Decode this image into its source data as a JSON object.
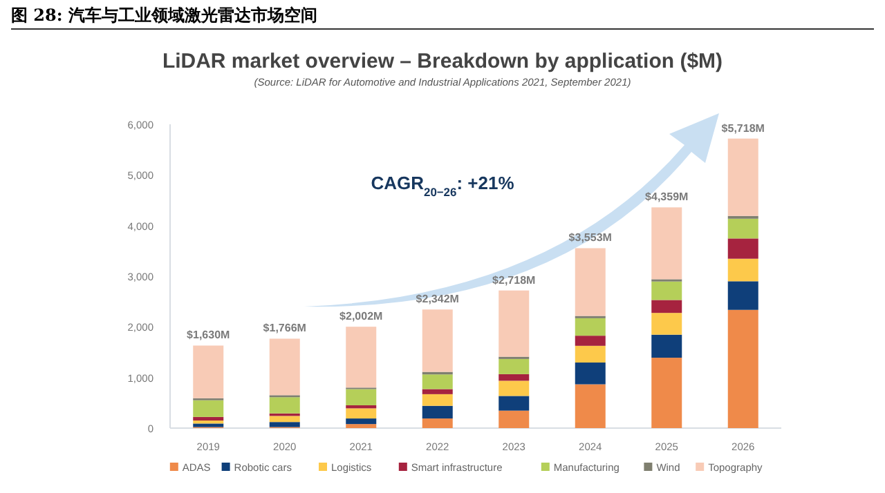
{
  "chart_data": {
    "type": "bar",
    "stacked": true,
    "title": "LiDAR market overview – Breakdown by application ($M)",
    "subtitle": "(Source: LiDAR for Automotive and Industrial Applications 2021, September 2021)",
    "annotations": [
      "图 28: 汽车与工业领域激光雷达市场空间",
      "CAGR$_{20−26}$: +21%"
    ],
    "categories": [
      "2019",
      "2020",
      "2021",
      "2022",
      "2023",
      "2024",
      "2025",
      "2026"
    ],
    "series": [
      {
        "name": "ADAS",
        "color": "#ef8a4a",
        "values": [
          20,
          20,
          80,
          190,
          345,
          865,
          1390,
          2335
        ]
      },
      {
        "name": "Robotic cars",
        "color": "#0f3f7a",
        "values": [
          70,
          100,
          110,
          250,
          290,
          430,
          455,
          565
        ]
      },
      {
        "name": "Logistics",
        "color": "#fdc94b",
        "values": [
          60,
          120,
          200,
          230,
          300,
          330,
          430,
          445
        ]
      },
      {
        "name": "Smart infrastructure",
        "color": "#a6233f",
        "values": [
          70,
          50,
          60,
          100,
          130,
          200,
          255,
          400
        ]
      },
      {
        "name": "Manufacturing",
        "color": "#b5cf59",
        "values": [
          330,
          320,
          320,
          290,
          300,
          345,
          365,
          390
        ]
      },
      {
        "name": "Wind",
        "color": "#7f7f6f",
        "values": [
          40,
          40,
          30,
          50,
          45,
          45,
          45,
          55
        ]
      },
      {
        "name": "Topography",
        "color": "#f8cbb6",
        "values": [
          1040,
          1116,
          1202,
          1232,
          1308,
          1338,
          1419,
          1528
        ]
      }
    ],
    "totals": [
      "$1,630M",
      "$1,766M",
      "$2,002M",
      "$2,342M",
      "$2,718M",
      "$3,553M",
      "$4,359M",
      "$5,718M"
    ],
    "ylim": [
      0,
      6000
    ],
    "yticks": [
      0,
      {
        "value": 1000,
        "label": "1,000"
      },
      {
        "value": 2000,
        "label": "2,000"
      },
      {
        "value": 3000,
        "label": "3,000"
      },
      {
        "value": 4000,
        "label": "4,000"
      },
      {
        "value": 5000,
        "label": "5,000"
      },
      {
        "value": 6000,
        "label": "6,000"
      }
    ],
    "legend": "bottom"
  }
}
